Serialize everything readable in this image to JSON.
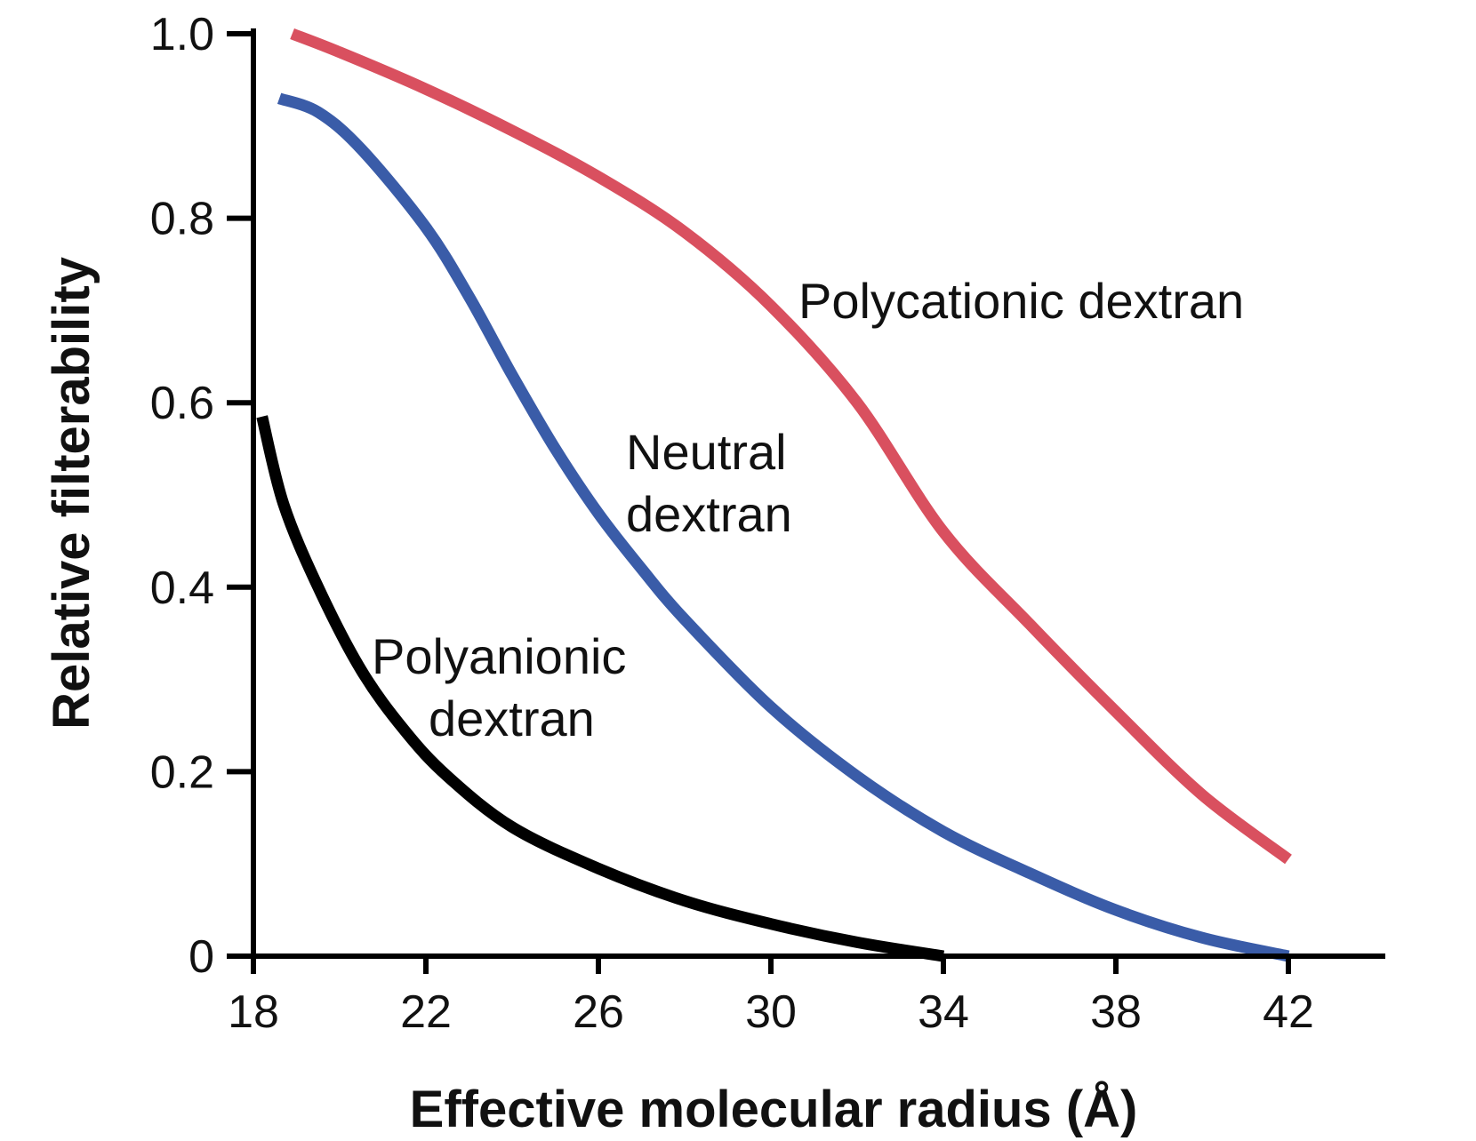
{
  "chart_data": {
    "type": "line",
    "xlabel": "Effective molecular radius (Å)",
    "ylabel": "Relative filterability",
    "xlim": [
      18,
      44.5
    ],
    "ylim": [
      0,
      1.0
    ],
    "x_ticks": [
      18,
      22,
      26,
      30,
      34,
      38,
      42
    ],
    "x_tick_labels": [
      "18",
      "22",
      "26",
      "30",
      "34",
      "38",
      "42"
    ],
    "y_ticks": [
      0,
      0.2,
      0.4,
      0.6,
      0.8,
      1.0
    ],
    "y_tick_labels": [
      "0",
      "0.2",
      "0.4",
      "0.6",
      "0.8",
      "1.0"
    ],
    "grid": false,
    "legend": "none; series labeled directly on plot",
    "series": [
      {
        "key": "polycationic",
        "label_lines": [
          "Polycationic dextran"
        ],
        "color": "#d9505f",
        "x": [
          18.9,
          20,
          22,
          24,
          26,
          28,
          30,
          32,
          34,
          36,
          38,
          40,
          42
        ],
        "y": [
          1.0,
          0.98,
          0.94,
          0.895,
          0.845,
          0.785,
          0.705,
          0.6,
          0.46,
          0.36,
          0.265,
          0.175,
          0.105
        ]
      },
      {
        "key": "neutral",
        "label_lines": [
          "Neutral",
          "dextran"
        ],
        "color": "#3a5ca8",
        "x": [
          18.6,
          19.5,
          20.5,
          22,
          23,
          24,
          25,
          26,
          27,
          28,
          30,
          32,
          34,
          36,
          38,
          40,
          42
        ],
        "y": [
          0.93,
          0.915,
          0.875,
          0.79,
          0.715,
          0.63,
          0.55,
          0.48,
          0.42,
          0.365,
          0.27,
          0.195,
          0.135,
          0.09,
          0.05,
          0.02,
          0.0
        ]
      },
      {
        "key": "polyanionic",
        "label_lines": [
          "Polyanionic",
          "dextran"
        ],
        "color": "#000000",
        "x": [
          18.2,
          18.7,
          19.5,
          20.5,
          21.5,
          22.5,
          24,
          26,
          28,
          30,
          32,
          34
        ],
        "y": [
          0.585,
          0.49,
          0.4,
          0.31,
          0.245,
          0.195,
          0.14,
          0.095,
          0.06,
          0.035,
          0.015,
          0.0
        ]
      }
    ]
  }
}
